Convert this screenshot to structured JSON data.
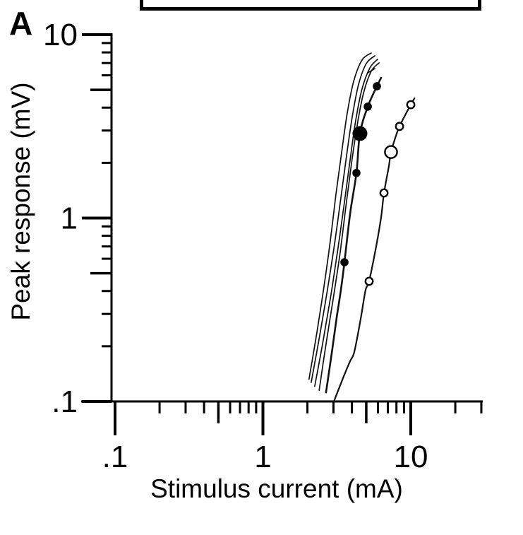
{
  "panel_label": "A",
  "colors": {
    "ink": "#111111",
    "background": "#ffffff"
  },
  "chart_data": {
    "type": "line",
    "title": "",
    "xlabel": "Stimulus current (mA)",
    "ylabel": "Peak response (mV)",
    "xscale": "log",
    "yscale": "log",
    "xlim": [
      0.1,
      30
    ],
    "ylim": [
      0.1,
      10
    ],
    "grid": false,
    "legend": "none",
    "x_ticks_major": {
      "values": [
        0.1,
        1,
        10
      ],
      "labels": [
        ".1",
        "1",
        "10"
      ]
    },
    "x_ticks_medium": [
      0.5,
      5
    ],
    "x_ticks_minor": [
      0.2,
      0.3,
      0.4,
      0.6,
      0.7,
      0.8,
      0.9,
      2,
      3,
      4,
      6,
      7,
      8,
      9,
      20,
      30
    ],
    "y_ticks_major": {
      "values": [
        10,
        1,
        0.1
      ],
      "labels": [
        "10",
        "1",
        ".1"
      ]
    },
    "y_ticks_medium": [
      5,
      0.5
    ],
    "y_ticks_minor": [
      9,
      8,
      7,
      6,
      4,
      3,
      2,
      0.9,
      0.8,
      0.7,
      0.6,
      0.4,
      0.3,
      0.2
    ],
    "series": [
      {
        "name": "unmarked-curve-1",
        "marker": "none",
        "stroke_width": 1.7,
        "points": [
          [
            2.05,
            0.132
          ],
          [
            2.32,
            0.239
          ],
          [
            2.59,
            0.425
          ],
          [
            2.86,
            0.756
          ],
          [
            3.12,
            1.35
          ],
          [
            3.41,
            2.29
          ],
          [
            3.72,
            3.74
          ],
          [
            4.11,
            5.57
          ],
          [
            4.68,
            7.27
          ],
          [
            5.4,
            7.94
          ]
        ]
      },
      {
        "name": "unmarked-curve-2",
        "marker": "none",
        "stroke_width": 1.7,
        "points": [
          [
            2.12,
            0.127
          ],
          [
            2.42,
            0.228
          ],
          [
            2.73,
            0.406
          ],
          [
            3.05,
            0.723
          ],
          [
            3.37,
            1.29
          ],
          [
            3.68,
            2.19
          ],
          [
            4.02,
            3.57
          ],
          [
            4.43,
            5.33
          ],
          [
            5.0,
            6.95
          ],
          [
            5.71,
            7.66
          ]
        ]
      },
      {
        "name": "unmarked-curve-3",
        "marker": "none",
        "stroke_width": 1.7,
        "points": [
          [
            2.24,
            0.121
          ],
          [
            2.56,
            0.216
          ],
          [
            2.89,
            0.385
          ],
          [
            3.22,
            0.686
          ],
          [
            3.56,
            1.22
          ],
          [
            3.89,
            2.08
          ],
          [
            4.24,
            3.39
          ],
          [
            4.68,
            5.05
          ],
          [
            5.29,
            6.59
          ],
          [
            5.96,
            7.33
          ]
        ]
      },
      {
        "name": "unmarked-curve-4",
        "marker": "none",
        "stroke_width": 1.7,
        "points": [
          [
            2.4,
            0.115
          ],
          [
            2.67,
            0.205
          ],
          [
            2.99,
            0.365
          ],
          [
            3.33,
            0.65
          ],
          [
            3.64,
            1.16
          ],
          [
            3.97,
            1.97
          ],
          [
            4.34,
            3.21
          ],
          [
            4.79,
            4.79
          ],
          [
            5.4,
            6.31
          ],
          [
            6.1,
            7.01
          ]
        ]
      },
      {
        "name": "unmarked-curve-tip-fragment",
        "marker": "none",
        "stroke_width": 1.7,
        "points": [
          [
            5.12,
            6.19
          ],
          [
            5.71,
            6.53
          ]
        ]
      },
      {
        "name": "filled-circle-curve",
        "marker": "filled-circle",
        "stroke_width": 2.6,
        "points": [
          [
            2.67,
            0.112
          ],
          [
            2.92,
            0.183
          ],
          [
            3.15,
            0.285
          ],
          [
            3.37,
            0.406
          ],
          [
            3.56,
            0.574
          ],
          [
            3.89,
            1.06
          ],
          [
            4.29,
            1.76
          ],
          [
            4.53,
            2.89
          ],
          [
            5.12,
            4.05
          ],
          [
            5.9,
            5.23
          ],
          [
            6.3,
            5.82
          ]
        ],
        "markers": [
          {
            "x": 3.56,
            "y": 0.574,
            "size": "small"
          },
          {
            "x": 4.29,
            "y": 1.76,
            "size": "small"
          },
          {
            "x": 4.53,
            "y": 2.89,
            "size": "large"
          },
          {
            "x": 5.12,
            "y": 4.05,
            "size": "small"
          },
          {
            "x": 5.9,
            "y": 5.23,
            "size": "small"
          }
        ]
      },
      {
        "name": "open-circle-curve",
        "marker": "open-circle",
        "stroke_width": 2.2,
        "points": [
          [
            3.02,
            0.1
          ],
          [
            3.26,
            0.117
          ],
          [
            3.56,
            0.14
          ],
          [
            3.89,
            0.166
          ],
          [
            4.11,
            0.181
          ],
          [
            4.34,
            0.222
          ],
          [
            4.63,
            0.295
          ],
          [
            4.95,
            0.406
          ],
          [
            5.23,
            0.452
          ],
          [
            5.84,
            0.704
          ],
          [
            6.3,
            1.01
          ],
          [
            6.59,
            1.37
          ],
          [
            7.11,
            1.92
          ],
          [
            7.35,
            2.29
          ],
          [
            7.94,
            2.81
          ],
          [
            8.39,
            3.16
          ],
          [
            9.26,
            3.7
          ],
          [
            10.0,
            4.15
          ],
          [
            10.6,
            4.5
          ]
        ],
        "markers": [
          {
            "x": 5.23,
            "y": 0.452,
            "size": "small"
          },
          {
            "x": 6.59,
            "y": 1.37,
            "size": "small"
          },
          {
            "x": 7.35,
            "y": 2.29,
            "size": "large"
          },
          {
            "x": 8.39,
            "y": 3.16,
            "size": "small"
          },
          {
            "x": 10.0,
            "y": 4.15,
            "size": "small"
          }
        ]
      }
    ]
  }
}
